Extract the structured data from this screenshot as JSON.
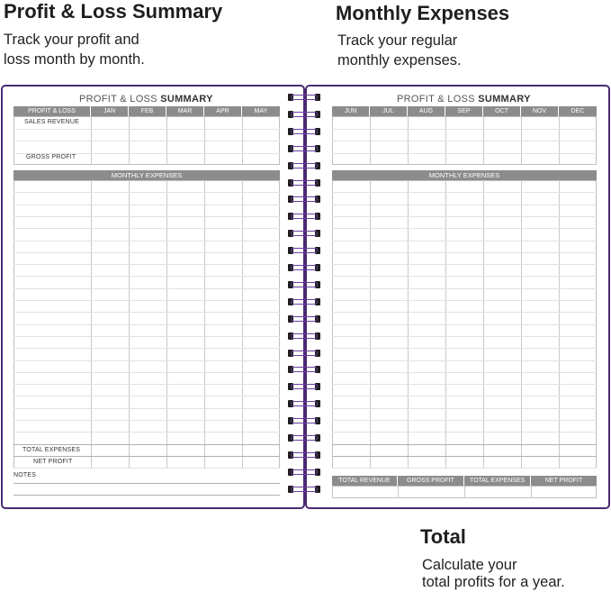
{
  "features": {
    "pl": {
      "title": "Profit & Loss Summary",
      "line1": "Track your profit and",
      "line2": "loss month by month."
    },
    "me": {
      "title": "Monthly Expenses",
      "line1": "Track your regular",
      "line2": "monthly expenses."
    },
    "total": {
      "title": "Total",
      "line1": "Calculate your",
      "line2": "total profits for a year."
    }
  },
  "left_page": {
    "title_light": "PROFIT & LOSS ",
    "title_bold": "SUMMARY",
    "columns": [
      "PROFIT & LOSS",
      "JAN",
      "FEB",
      "MAR",
      "APR",
      "MAY"
    ],
    "sales_revenue": "SALES REVENUE",
    "gross_profit": "GROSS PROFIT",
    "monthly_expenses": "MONTHLY EXPENSES",
    "total_expenses": "TOTAL EXPENSES",
    "net_profit": "NET PROFIT",
    "notes": "NOTES"
  },
  "right_page": {
    "title_light": "PROFIT & LOSS ",
    "title_bold": "SUMMARY",
    "columns": [
      "JUN",
      "JUL",
      "AUG",
      "SEP",
      "OCT",
      "NOV",
      "DEC"
    ],
    "monthly_expenses": "MONTHLY EXPENSES",
    "totals": [
      "TOTAL REVENUE",
      "GROSS PROFIT",
      "TOTAL EXPENSES",
      "NET PROFIT"
    ]
  },
  "colors": {
    "border": "#4b2a73",
    "header": "#8c8c8c",
    "coil": "#6b3fa0"
  }
}
